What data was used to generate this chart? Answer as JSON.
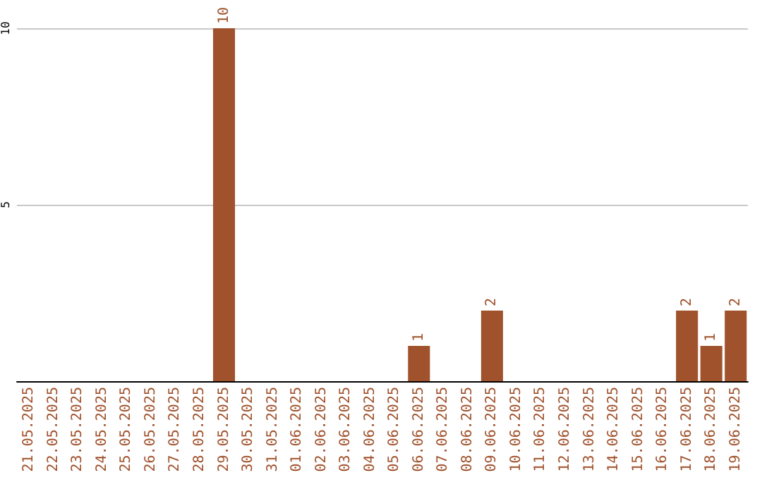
{
  "chart_data": {
    "type": "bar",
    "categories": [
      "21.05.2025",
      "22.05.2025",
      "23.05.2025",
      "24.05.2025",
      "25.05.2025",
      "26.05.2025",
      "27.05.2025",
      "28.05.2025",
      "29.05.2025",
      "30.05.2025",
      "31.05.2025",
      "01.06.2025",
      "02.06.2025",
      "03.06.2025",
      "04.06.2025",
      "05.06.2025",
      "06.06.2025",
      "07.06.2025",
      "08.06.2025",
      "09.06.2025",
      "10.06.2025",
      "11.06.2025",
      "12.06.2025",
      "13.06.2025",
      "14.06.2025",
      "15.06.2025",
      "16.06.2025",
      "17.06.2025",
      "18.06.2025",
      "19.06.2025"
    ],
    "values": [
      0,
      0,
      0,
      0,
      0,
      0,
      0,
      0,
      10,
      0,
      0,
      0,
      0,
      0,
      0,
      0,
      1,
      0,
      0,
      2,
      0,
      0,
      0,
      0,
      0,
      0,
      0,
      2,
      1,
      2
    ],
    "value_labels": [
      null,
      null,
      null,
      null,
      null,
      null,
      null,
      null,
      "10",
      null,
      null,
      null,
      null,
      null,
      null,
      null,
      "1",
      null,
      null,
      "2",
      null,
      null,
      null,
      null,
      null,
      null,
      null,
      "2",
      "1",
      "2"
    ],
    "color": "#a0522d",
    "ylim": [
      0,
      10
    ],
    "yticks": [
      5,
      10
    ],
    "grid": "y"
  }
}
